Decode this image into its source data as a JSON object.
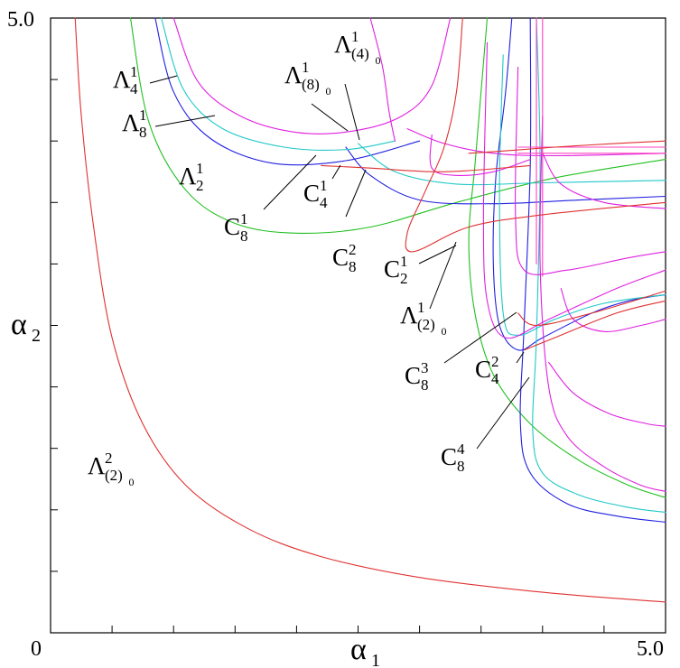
{
  "chart_data": {
    "type": "line",
    "title": "",
    "xlabel": "α",
    "xlabel_sub": "1",
    "ylabel": "α",
    "ylabel_sub": "2",
    "xlim": [
      0,
      5
    ],
    "ylim": [
      0,
      5
    ],
    "x_tick_labels": {
      "min": "0",
      "max": "5.0"
    },
    "y_tick_labels": {
      "max": "5.0"
    },
    "grid": false,
    "colors": {
      "red": "#e03030",
      "green": "#20c020",
      "blue": "#2020e0",
      "cyan": "#20c8c8",
      "magenta": "#e020e0",
      "pink": "#ff40c0"
    },
    "labels": [
      {
        "id": "L4_1",
        "base": "Λ",
        "sup": "1",
        "sub": "4",
        "sub2": ""
      },
      {
        "id": "L8_1",
        "base": "Λ",
        "sup": "1",
        "sub": "8",
        "sub2": ""
      },
      {
        "id": "L2_1",
        "base": "Λ",
        "sup": "1",
        "sub": "2",
        "sub2": ""
      },
      {
        "id": "L8_0_1",
        "base": "Λ",
        "sup": "1",
        "sub": "(8)",
        "sub2": "0"
      },
      {
        "id": "L4_0_1",
        "base": "Λ",
        "sup": "1",
        "sub": "(4)",
        "sub2": "0"
      },
      {
        "id": "C4_1",
        "base": "C",
        "sup": "1",
        "sub": "4",
        "sub2": ""
      },
      {
        "id": "C8_1",
        "base": "C",
        "sup": "1",
        "sub": "8",
        "sub2": ""
      },
      {
        "id": "C8_2",
        "base": "C",
        "sup": "2",
        "sub": "8",
        "sub2": ""
      },
      {
        "id": "C2_1",
        "base": "C",
        "sup": "1",
        "sub": "2",
        "sub2": ""
      },
      {
        "id": "L2_0_1",
        "base": "Λ",
        "sup": "1",
        "sub": "(2)",
        "sub2": "0"
      },
      {
        "id": "C8_3",
        "base": "C",
        "sup": "3",
        "sub": "8",
        "sub2": ""
      },
      {
        "id": "C4_2",
        "base": "C",
        "sup": "2",
        "sub": "4",
        "sub2": ""
      },
      {
        "id": "C8_4",
        "base": "C",
        "sup": "4",
        "sub": "8",
        "sub2": ""
      },
      {
        "id": "L2_0_2",
        "base": "Λ",
        "sup": "2",
        "sub": "(2)",
        "sub2": "0"
      }
    ],
    "series": [
      {
        "color": "red",
        "points": [
          [
            0.2,
            5.0
          ],
          [
            0.25,
            4.2
          ],
          [
            0.35,
            3.3
          ],
          [
            0.5,
            2.4
          ],
          [
            0.75,
            1.7
          ],
          [
            1.1,
            1.2
          ],
          [
            1.6,
            0.85
          ],
          [
            2.2,
            0.62
          ],
          [
            3.0,
            0.45
          ],
          [
            4.0,
            0.33
          ],
          [
            5.0,
            0.25
          ]
        ]
      },
      {
        "color": "green",
        "points": [
          [
            0.65,
            5.0
          ],
          [
            0.8,
            4.15
          ],
          [
            1.1,
            3.6
          ],
          [
            1.5,
            3.33
          ],
          [
            2.0,
            3.25
          ],
          [
            2.6,
            3.3
          ],
          [
            3.3,
            3.5
          ],
          [
            4.1,
            3.7
          ],
          [
            5.0,
            3.85
          ]
        ]
      },
      {
        "color": "green",
        "points": [
          [
            3.55,
            5.0
          ],
          [
            3.5,
            4.4
          ],
          [
            3.45,
            3.8
          ],
          [
            3.4,
            3.2
          ],
          [
            3.45,
            2.6
          ],
          [
            3.6,
            2.1
          ],
          [
            3.9,
            1.7
          ],
          [
            4.3,
            1.4
          ],
          [
            4.7,
            1.2
          ],
          [
            5.0,
            1.1
          ]
        ]
      },
      {
        "color": "blue",
        "points": [
          [
            0.85,
            5.0
          ],
          [
            1.0,
            4.4
          ],
          [
            1.3,
            4.02
          ],
          [
            1.8,
            3.82
          ],
          [
            2.4,
            3.84
          ],
          [
            3.0,
            4.0
          ]
        ]
      },
      {
        "color": "blue",
        "points": [
          [
            2.4,
            3.95
          ],
          [
            2.6,
            3.72
          ],
          [
            3.0,
            3.52
          ],
          [
            3.6,
            3.49
          ],
          [
            4.3,
            3.52
          ],
          [
            5.0,
            3.55
          ]
        ]
      },
      {
        "color": "blue",
        "points": [
          [
            3.75,
            5.0
          ],
          [
            3.7,
            4.4
          ],
          [
            3.62,
            3.7
          ],
          [
            3.6,
            3.0
          ],
          [
            3.65,
            2.5
          ],
          [
            3.8,
            2.3
          ],
          [
            4.0,
            2.4
          ],
          [
            4.4,
            2.6
          ],
          [
            4.7,
            2.7
          ],
          [
            5.0,
            2.75
          ]
        ]
      },
      {
        "color": "blue",
        "points": [
          [
            3.9,
            5.0
          ],
          [
            3.9,
            3.8
          ],
          [
            3.85,
            2.5
          ],
          [
            3.82,
            1.7
          ],
          [
            3.9,
            1.3
          ],
          [
            4.2,
            1.05
          ],
          [
            4.6,
            0.95
          ],
          [
            5.0,
            0.9
          ]
        ]
      },
      {
        "color": "cyan",
        "points": [
          [
            0.9,
            5.0
          ],
          [
            1.08,
            4.42
          ],
          [
            1.4,
            4.1
          ],
          [
            1.9,
            3.95
          ],
          [
            2.4,
            3.93
          ],
          [
            2.8,
            4.0
          ]
        ]
      },
      {
        "color": "cyan",
        "points": [
          [
            2.5,
            3.98
          ],
          [
            2.8,
            3.75
          ],
          [
            3.3,
            3.65
          ],
          [
            4.0,
            3.66
          ],
          [
            5.0,
            3.68
          ]
        ]
      },
      {
        "color": "cyan",
        "points": [
          [
            3.68,
            4.7
          ],
          [
            3.65,
            3.6
          ],
          [
            3.68,
            2.6
          ],
          [
            3.8,
            2.42
          ],
          [
            4.1,
            2.55
          ],
          [
            4.5,
            2.68
          ],
          [
            5.0,
            2.75
          ]
        ]
      },
      {
        "color": "cyan",
        "points": [
          [
            3.95,
            5.0
          ],
          [
            3.98,
            3.8
          ],
          [
            3.95,
            2.4
          ],
          [
            3.92,
            1.65
          ],
          [
            4.0,
            1.3
          ],
          [
            4.3,
            1.12
          ],
          [
            4.7,
            1.02
          ],
          [
            5.0,
            0.98
          ]
        ]
      },
      {
        "color": "magenta",
        "points": [
          [
            1.0,
            5.0
          ],
          [
            1.2,
            4.48
          ],
          [
            1.55,
            4.2
          ],
          [
            2.0,
            4.07
          ],
          [
            2.45,
            4.08
          ],
          [
            2.85,
            4.2
          ],
          [
            3.1,
            4.45
          ],
          [
            3.25,
            5.0
          ]
        ]
      },
      {
        "color": "magenta",
        "points": [
          [
            2.9,
            4.1
          ],
          [
            3.2,
            3.98
          ],
          [
            3.6,
            3.9
          ],
          [
            4.1,
            3.88
          ],
          [
            5.0,
            3.9
          ]
        ]
      },
      {
        "color": "magenta",
        "points": [
          [
            2.6,
            5.0
          ],
          [
            2.7,
            4.6
          ],
          [
            2.75,
            4.25
          ],
          [
            2.8,
            4.0
          ]
        ]
      },
      {
        "color": "magenta",
        "points": [
          [
            3.55,
            4.8
          ],
          [
            3.52,
            3.4
          ],
          [
            3.55,
            2.7
          ],
          [
            3.7,
            2.4
          ],
          [
            4.05,
            2.55
          ],
          [
            4.6,
            2.8
          ],
          [
            5.0,
            2.95
          ]
        ]
      },
      {
        "color": "magenta",
        "points": [
          [
            3.8,
            4.6
          ],
          [
            3.78,
            3.4
          ],
          [
            3.85,
            2.95
          ],
          [
            4.2,
            2.95
          ],
          [
            4.7,
            3.05
          ],
          [
            5.0,
            3.1
          ]
        ]
      },
      {
        "color": "magenta",
        "points": [
          [
            4.0,
            4.2
          ],
          [
            3.98,
            3.0
          ],
          [
            4.05,
            2.0
          ],
          [
            4.2,
            1.6
          ],
          [
            4.5,
            1.35
          ],
          [
            4.8,
            1.2
          ],
          [
            5.0,
            1.15
          ]
        ]
      },
      {
        "color": "magenta",
        "points": [
          [
            4.15,
            2.8
          ],
          [
            4.25,
            2.55
          ],
          [
            4.5,
            2.45
          ],
          [
            4.8,
            2.5
          ],
          [
            5.0,
            2.55
          ]
        ]
      },
      {
        "color": "magenta",
        "points": [
          [
            4.05,
            2.2
          ],
          [
            4.25,
            1.95
          ],
          [
            4.55,
            1.78
          ],
          [
            4.85,
            1.7
          ],
          [
            5.0,
            1.68
          ]
        ]
      },
      {
        "color": "magenta",
        "points": [
          [
            4.0,
            3.9
          ],
          [
            4.15,
            3.65
          ],
          [
            4.5,
            3.5
          ],
          [
            5.0,
            3.45
          ]
        ]
      },
      {
        "color": "magenta",
        "points": [
          [
            3.1,
            4.05
          ],
          [
            3.1,
            3.78
          ],
          [
            3.3,
            3.72
          ],
          [
            3.6,
            3.75
          ],
          [
            3.9,
            3.85
          ]
        ]
      },
      {
        "color": "pink",
        "points": [
          [
            3.95,
            5.0
          ],
          [
            3.95,
            3.0
          ]
        ]
      },
      {
        "color": "pink",
        "points": [
          [
            4.0,
            5.0
          ],
          [
            4.0,
            2.9
          ]
        ]
      },
      {
        "color": "pink",
        "points": [
          [
            3.8,
            3.95
          ],
          [
            5.0,
            3.95
          ]
        ]
      },
      {
        "color": "pink",
        "points": [
          [
            3.8,
            3.9
          ],
          [
            5.0,
            3.9
          ]
        ]
      },
      {
        "color": "red",
        "points": [
          [
            2.2,
            3.8
          ],
          [
            2.6,
            3.78
          ],
          [
            3.2,
            3.75
          ],
          [
            3.9,
            3.8
          ]
        ]
      },
      {
        "color": "red",
        "points": [
          [
            3.35,
            5.0
          ],
          [
            3.3,
            4.4
          ],
          [
            3.2,
            3.95
          ],
          [
            3.05,
            3.6
          ],
          [
            2.9,
            3.25
          ],
          [
            2.95,
            3.1
          ],
          [
            3.4,
            3.3
          ],
          [
            4.0,
            3.4
          ],
          [
            5.0,
            3.5
          ]
        ]
      },
      {
        "color": "red",
        "points": [
          [
            3.8,
            2.6
          ],
          [
            3.95,
            2.5
          ],
          [
            4.4,
            2.6
          ],
          [
            5.0,
            2.78
          ]
        ]
      },
      {
        "color": "red",
        "points": [
          [
            3.85,
            2.3
          ],
          [
            4.1,
            2.4
          ],
          [
            4.6,
            2.6
          ],
          [
            5.0,
            2.7
          ]
        ]
      },
      {
        "color": "red",
        "points": [
          [
            3.4,
            3.9
          ],
          [
            3.7,
            3.92
          ],
          [
            4.1,
            3.95
          ],
          [
            4.6,
            3.98
          ],
          [
            5.0,
            4.0
          ]
        ]
      }
    ]
  }
}
